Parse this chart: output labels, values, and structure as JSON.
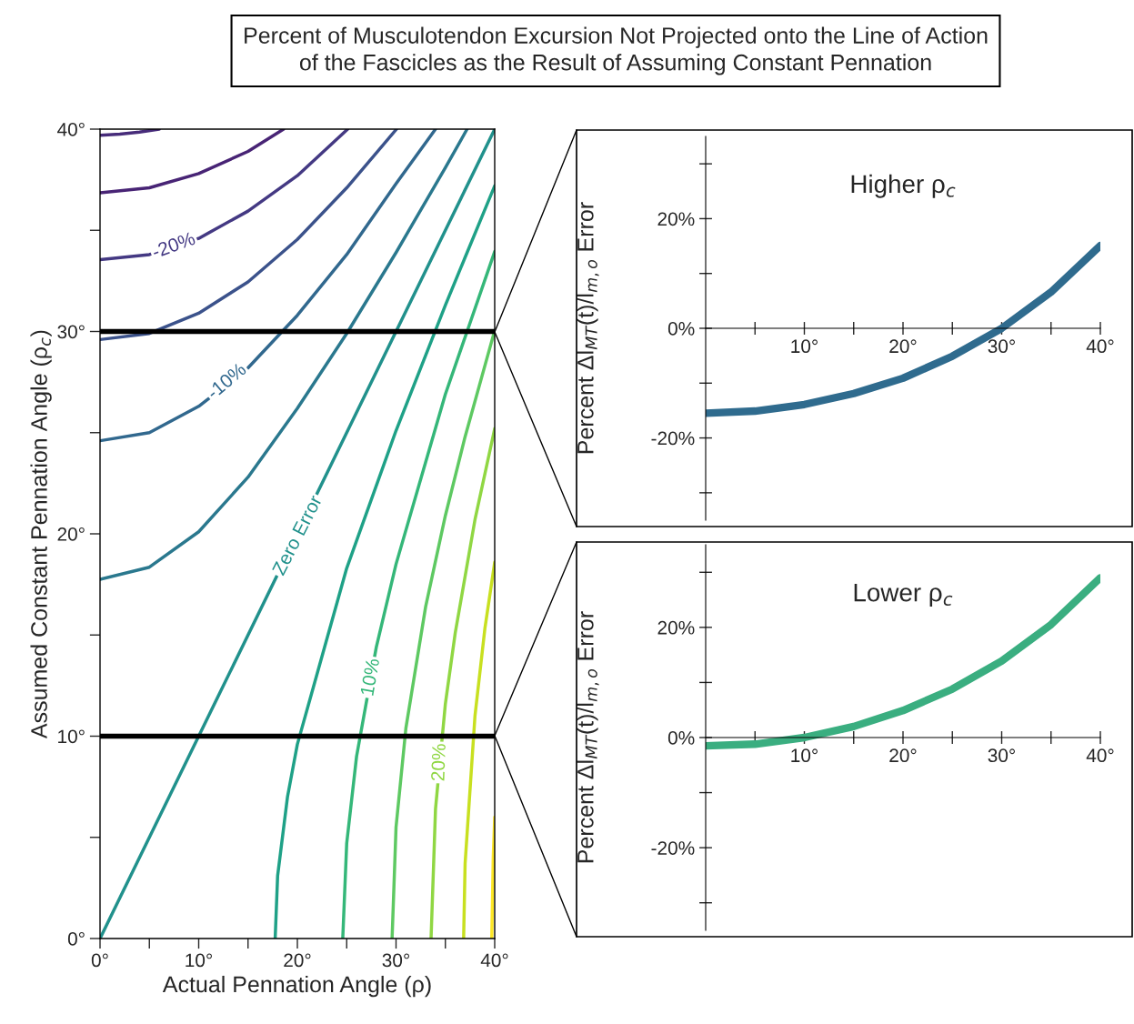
{
  "chart_data": [
    {
      "type": "line",
      "title": "Percent of Musculotendon Excursion Not Projected onto the Line of Action\nof the Fascicles as the Result of Assuming Constant Pennation",
      "xlabel": "Actual Pennation Angle (ρ)",
      "ylabel": "Assumed Constant Pennation Angle (ρ$_{c}$)",
      "xlim": [
        0,
        40
      ],
      "ylim": [
        0,
        40
      ],
      "xticks": [
        {
          "value": 0,
          "label": "0°"
        },
        {
          "value": 5,
          "label": null
        },
        {
          "value": 10,
          "label": "10°"
        },
        {
          "value": 15,
          "label": null
        },
        {
          "value": 20,
          "label": "20°"
        },
        {
          "value": 25,
          "label": null
        },
        {
          "value": 30,
          "label": "30°"
        },
        {
          "value": 35,
          "label": null
        },
        {
          "value": 40,
          "label": "40°"
        }
      ],
      "yticks": [
        {
          "value": 0,
          "label": "0°"
        },
        {
          "value": 5,
          "label": null
        },
        {
          "value": 10,
          "label": "10°"
        },
        {
          "value": 15,
          "label": null
        },
        {
          "value": 20,
          "label": "20°"
        },
        {
          "value": 25,
          "label": null
        },
        {
          "value": 30,
          "label": "30°"
        },
        {
          "value": 35,
          "label": null
        },
        {
          "value": 40,
          "label": "40°"
        }
      ],
      "series": [
        {
          "color": "#472c7a",
          "x": [
            0,
            2,
            4,
            6
          ],
          "values": [
            39.7,
            39.75,
            39.85,
            40
          ]
        },
        {
          "color": "#482475",
          "x": [
            0,
            5,
            10,
            15,
            18.6
          ],
          "values": [
            36.85,
            37.1,
            37.8,
            38.9,
            40
          ]
        },
        {
          "color": "#443983",
          "x": [
            0,
            5,
            10,
            15,
            20,
            25.1
          ],
          "values": [
            33.55,
            33.8,
            34.6,
            35.95,
            37.7,
            40
          ]
        },
        {
          "color": "#3b528b",
          "x": [
            0,
            5,
            10,
            15,
            20,
            25,
            30.05
          ],
          "values": [
            29.6,
            29.9,
            30.9,
            32.45,
            34.55,
            37.1,
            40
          ]
        },
        {
          "color": "#31688e",
          "x": [
            0,
            5,
            10,
            15,
            20,
            25,
            30,
            34
          ],
          "values": [
            24.6,
            25.0,
            26.3,
            28.2,
            30.8,
            33.8,
            37.3,
            40
          ]
        },
        {
          "color": "#2a788e",
          "x": [
            0,
            5,
            10,
            15,
            20,
            25,
            30,
            35,
            37.2
          ],
          "values": [
            17.75,
            18.35,
            20.1,
            22.8,
            26.2,
            29.9,
            33.9,
            38.1,
            40
          ]
        },
        {
          "color": "#21918c",
          "x": [
            0,
            40
          ],
          "values": [
            0,
            40
          ]
        },
        {
          "color": "#1fa187",
          "x": [
            17.75,
            18,
            19,
            20,
            25,
            30,
            35,
            40
          ],
          "values": [
            0,
            3.1,
            7.0,
            9.6,
            18.3,
            25.1,
            31.3,
            37.2
          ]
        },
        {
          "color": "#35b779",
          "x": [
            24.6,
            25,
            26,
            28,
            30,
            35,
            40
          ],
          "values": [
            0,
            4.7,
            9.0,
            14.4,
            18.5,
            26.9,
            33.95
          ]
        },
        {
          "color": "#5ec962",
          "x": [
            29.6,
            30,
            31,
            33,
            35,
            37,
            40
          ],
          "values": [
            0,
            5.5,
            10.4,
            16.4,
            20.9,
            24.8,
            30.05
          ]
        },
        {
          "color": "#90d743",
          "x": [
            33.55,
            34,
            35,
            36,
            38,
            40
          ],
          "values": [
            0,
            6.4,
            11.6,
            15.1,
            20.7,
            25.2
          ]
        },
        {
          "color": "#c8e020",
          "x": [
            36.85,
            37,
            38,
            39,
            40
          ],
          "values": [
            0,
            3.7,
            11.0,
            15.3,
            18.6
          ]
        },
        {
          "color": "#fde725",
          "x": [
            39.7,
            39.85,
            40
          ],
          "values": [
            0,
            4.0,
            6.0
          ]
        }
      ],
      "ref_lines": [
        {
          "axis": "y",
          "value": 30,
          "color": "#000000"
        },
        {
          "axis": "y",
          "value": 10,
          "color": "#000000"
        }
      ],
      "annotations": [
        {
          "text": "-20%",
          "x": 7.5,
          "y": 34.2
        },
        {
          "text": "-10%",
          "x": 12.9,
          "y": 27.5
        },
        {
          "text": "Zero Error",
          "x": 20.1,
          "y": 19.9
        },
        {
          "text": "10%",
          "x": 27.5,
          "y": 12.9
        },
        {
          "text": "20%",
          "x": 34.45,
          "y": 8.7
        }
      ]
    },
    {
      "type": "line",
      "title": "Higher ρ$_{c}$",
      "ylabel": "Percent Δl$_{MT}$(t)/l$_{m,o}$ Error",
      "x": [
        0,
        5,
        10,
        15,
        20,
        25,
        30,
        35,
        40
      ],
      "xlim": [
        0,
        40
      ],
      "ylim": [
        -35,
        35
      ],
      "xticks": [
        {
          "value": 5,
          "label": null
        },
        {
          "value": 10,
          "label": "10°"
        },
        {
          "value": 15,
          "label": null
        },
        {
          "value": 20,
          "label": "20°"
        },
        {
          "value": 25,
          "label": null
        },
        {
          "value": 30,
          "label": "30°"
        },
        {
          "value": 35,
          "label": null
        },
        {
          "value": 40,
          "label": "40°"
        }
      ],
      "yticks": [
        {
          "value": -30,
          "label": null
        },
        {
          "value": -20,
          "label": "-20%"
        },
        {
          "value": -10,
          "label": null
        },
        {
          "value": 0,
          "label": "0%"
        },
        {
          "value": 10,
          "label": null
        },
        {
          "value": 20,
          "label": "20%"
        },
        {
          "value": 30,
          "label": null
        }
      ],
      "series": [
        {
          "color": "#2f6b8e",
          "values": [
            -15.5,
            -15.1,
            -13.9,
            -11.9,
            -9.1,
            -5.1,
            0,
            6.6,
            15.1
          ]
        }
      ]
    },
    {
      "type": "line",
      "title": "Lower ρ$_{c}$",
      "ylabel": "Percent Δl$_{MT}$(t)/l$_{m,o}$ Error",
      "x": [
        0,
        5,
        10,
        15,
        20,
        25,
        30,
        35,
        40
      ],
      "xlim": [
        0,
        40
      ],
      "ylim": [
        -35,
        35
      ],
      "xticks": [
        {
          "value": 5,
          "label": null
        },
        {
          "value": 10,
          "label": "10°"
        },
        {
          "value": 15,
          "label": null
        },
        {
          "value": 20,
          "label": "20°"
        },
        {
          "value": 25,
          "label": null
        },
        {
          "value": 30,
          "label": "30°"
        },
        {
          "value": 35,
          "label": null
        },
        {
          "value": 40,
          "label": "40°"
        }
      ],
      "yticks": [
        {
          "value": -30,
          "label": null
        },
        {
          "value": -20,
          "label": "-20%"
        },
        {
          "value": -10,
          "label": null
        },
        {
          "value": 0,
          "label": "0%"
        },
        {
          "value": 10,
          "label": null
        },
        {
          "value": 20,
          "label": "20%"
        },
        {
          "value": 30,
          "label": null
        }
      ],
      "series": [
        {
          "color": "#3aae80",
          "values": [
            -1.5,
            -1.2,
            0,
            2.0,
            4.9,
            8.8,
            13.9,
            20.5,
            29.0
          ]
        }
      ]
    }
  ]
}
